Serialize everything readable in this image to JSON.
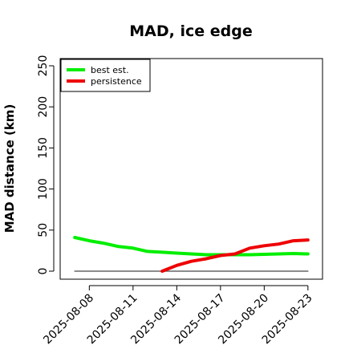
{
  "chart_data": {
    "type": "line",
    "title": "MAD, ice edge",
    "ylabel": "MAD distance (km)",
    "xlabel": "",
    "ylim": [
      0,
      250
    ],
    "xlim": [
      "2025-08-06",
      "2025-08-24"
    ],
    "yticks": [
      0,
      50,
      100,
      150,
      200,
      250
    ],
    "xticks": [
      "2025-08-08",
      "2025-08-11",
      "2025-08-14",
      "2025-08-17",
      "2025-08-20",
      "2025-08-23"
    ],
    "legend_position": "top-left",
    "grid": false,
    "series": [
      {
        "name": "best est.",
        "color": "#00ee00",
        "x": [
          "2025-08-07",
          "2025-08-08",
          "2025-08-09",
          "2025-08-10",
          "2025-08-11",
          "2025-08-12",
          "2025-08-13",
          "2025-08-14",
          "2025-08-15",
          "2025-08-16",
          "2025-08-17",
          "2025-08-18",
          "2025-08-19",
          "2025-08-20",
          "2025-08-21",
          "2025-08-22",
          "2025-08-23"
        ],
        "values": [
          41,
          37,
          34,
          30,
          28,
          24,
          23,
          22,
          21,
          20,
          20,
          20,
          20,
          20.5,
          21,
          21.5,
          21
        ]
      },
      {
        "name": "persistence",
        "color": "#ee0000",
        "x": [
          "2025-08-13",
          "2025-08-14",
          "2025-08-15",
          "2025-08-16",
          "2025-08-17",
          "2025-08-18",
          "2025-08-19",
          "2025-08-20",
          "2025-08-21",
          "2025-08-22",
          "2025-08-23"
        ],
        "values": [
          0,
          7,
          12,
          15,
          19,
          21,
          28,
          31,
          33,
          37,
          38
        ]
      },
      {
        "name": "",
        "color": "#666666",
        "x": [
          "2025-08-07",
          "2025-08-23"
        ],
        "values": [
          0,
          0
        ]
      }
    ]
  }
}
